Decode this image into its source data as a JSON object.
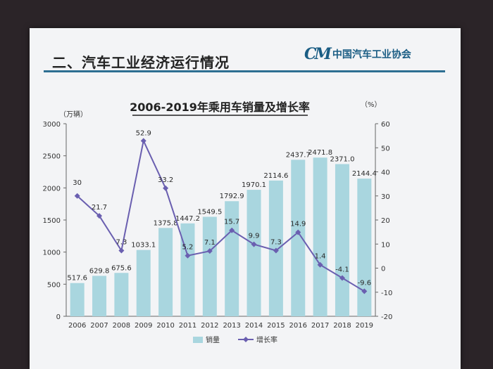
{
  "slide": {
    "title": "二、汽车工业经济运行情况",
    "logo_mark": "CM",
    "logo_text": "中国汽车工业协会"
  },
  "colors": {
    "bar": "#a9d6df",
    "line": "#6a5fb0",
    "title_rule": "#2d6f92",
    "logo": "#1a5d84"
  },
  "chart_data": {
    "type": "bar",
    "title": "2006-2019年乘用车销量及增长率",
    "left_unit": "（万辆）",
    "right_unit": "（%）",
    "categories": [
      "2006",
      "2007",
      "2008",
      "2009",
      "2010",
      "2011",
      "2012",
      "2013",
      "2014",
      "2015",
      "2016",
      "2017",
      "2018",
      "2019"
    ],
    "series": [
      {
        "name": "销量",
        "kind": "bar",
        "axis": "left",
        "values": [
          517.6,
          629.8,
          675.6,
          1033.1,
          1375.8,
          1447.2,
          1549.5,
          1792.9,
          1970.1,
          2114.6,
          2437.7,
          2471.8,
          2371.0,
          2144.4
        ],
        "labels": [
          "517.6",
          "629.8",
          "675.6",
          "1033.1",
          "1375.8",
          "1447.2",
          "1549.5",
          "1792.9",
          "1970.1",
          "2114.6",
          "2437.7",
          "2471.8",
          "2371.0",
          "2144.4"
        ]
      },
      {
        "name": "增长率",
        "kind": "line",
        "axis": "right",
        "values": [
          30,
          21.7,
          7.3,
          52.9,
          33.2,
          5.2,
          7.1,
          15.7,
          9.9,
          7.3,
          14.9,
          1.4,
          -4.1,
          -9.6
        ],
        "labels": [
          "30",
          "21.7",
          "7.3",
          "52.9",
          "33.2",
          "5.2",
          "7.1",
          "15.7",
          "9.9",
          "7.3",
          "14.9",
          "1.4",
          "-4.1",
          "-9.6"
        ]
      }
    ],
    "left_axis": {
      "min": 0,
      "max": 3000,
      "ticks": [
        "0",
        "500",
        "1000",
        "1500",
        "2000",
        "2500",
        "3000"
      ]
    },
    "right_axis": {
      "min": -20,
      "max": 60,
      "ticks": [
        "-20",
        "-10",
        "0",
        "10",
        "20",
        "30",
        "40",
        "50",
        "60"
      ]
    },
    "legend": {
      "position": "bottom",
      "items": [
        "销量",
        "增长率"
      ]
    },
    "grid": false
  }
}
